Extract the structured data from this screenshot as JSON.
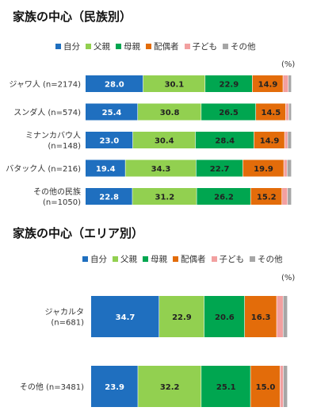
{
  "colors": [
    "#1f6fbf",
    "#92d050",
    "#00a650",
    "#e36c0a",
    "#f2a0a0",
    "#a6a6a6"
  ],
  "chart_data": [
    {
      "type": "bar",
      "stacked": true,
      "orientation": "horizontal",
      "title": "家族の中心（民族別）",
      "unit": "(%)",
      "xlim": [
        0,
        100
      ],
      "categories": [
        "ジャワ人 (n=2174)",
        "スンダ人 (n=574)",
        "ミナンカバウ人\n(n=148)",
        "バタック人 (n=216)",
        "その他の民族\n(n=1050)"
      ],
      "series": [
        {
          "name": "自分",
          "values": [
            28.0,
            25.4,
            23.0,
            19.4,
            22.8
          ]
        },
        {
          "name": "父親",
          "values": [
            30.1,
            30.8,
            30.4,
            34.3,
            31.2
          ]
        },
        {
          "name": "母親",
          "values": [
            22.9,
            26.5,
            28.4,
            22.7,
            26.2
          ]
        },
        {
          "name": "配偶者",
          "values": [
            14.9,
            14.5,
            14.9,
            19.9,
            15.2
          ]
        },
        {
          "name": "子ども",
          "values": [
            2.6,
            1.5,
            1.5,
            1.6,
            2.7
          ]
        },
        {
          "name": "その他",
          "values": [
            1.5,
            1.3,
            1.8,
            2.1,
            1.9
          ]
        }
      ]
    },
    {
      "type": "bar",
      "stacked": true,
      "orientation": "horizontal",
      "title": "家族の中心（エリア別）",
      "unit": "(%)",
      "xlim": [
        0,
        100
      ],
      "categories": [
        "ジャカルタ\n(n=681)",
        "その他 (n=3481)"
      ],
      "series": [
        {
          "name": "自分",
          "values": [
            34.7,
            23.9
          ]
        },
        {
          "name": "父親",
          "values": [
            22.9,
            32.2
          ]
        },
        {
          "name": "母親",
          "values": [
            20.6,
            25.1
          ]
        },
        {
          "name": "配偶者",
          "values": [
            16.3,
            15.0
          ]
        },
        {
          "name": "子ども",
          "values": [
            3.3,
            1.7
          ]
        },
        {
          "name": "その他",
          "values": [
            2.2,
            2.1
          ]
        }
      ]
    }
  ]
}
